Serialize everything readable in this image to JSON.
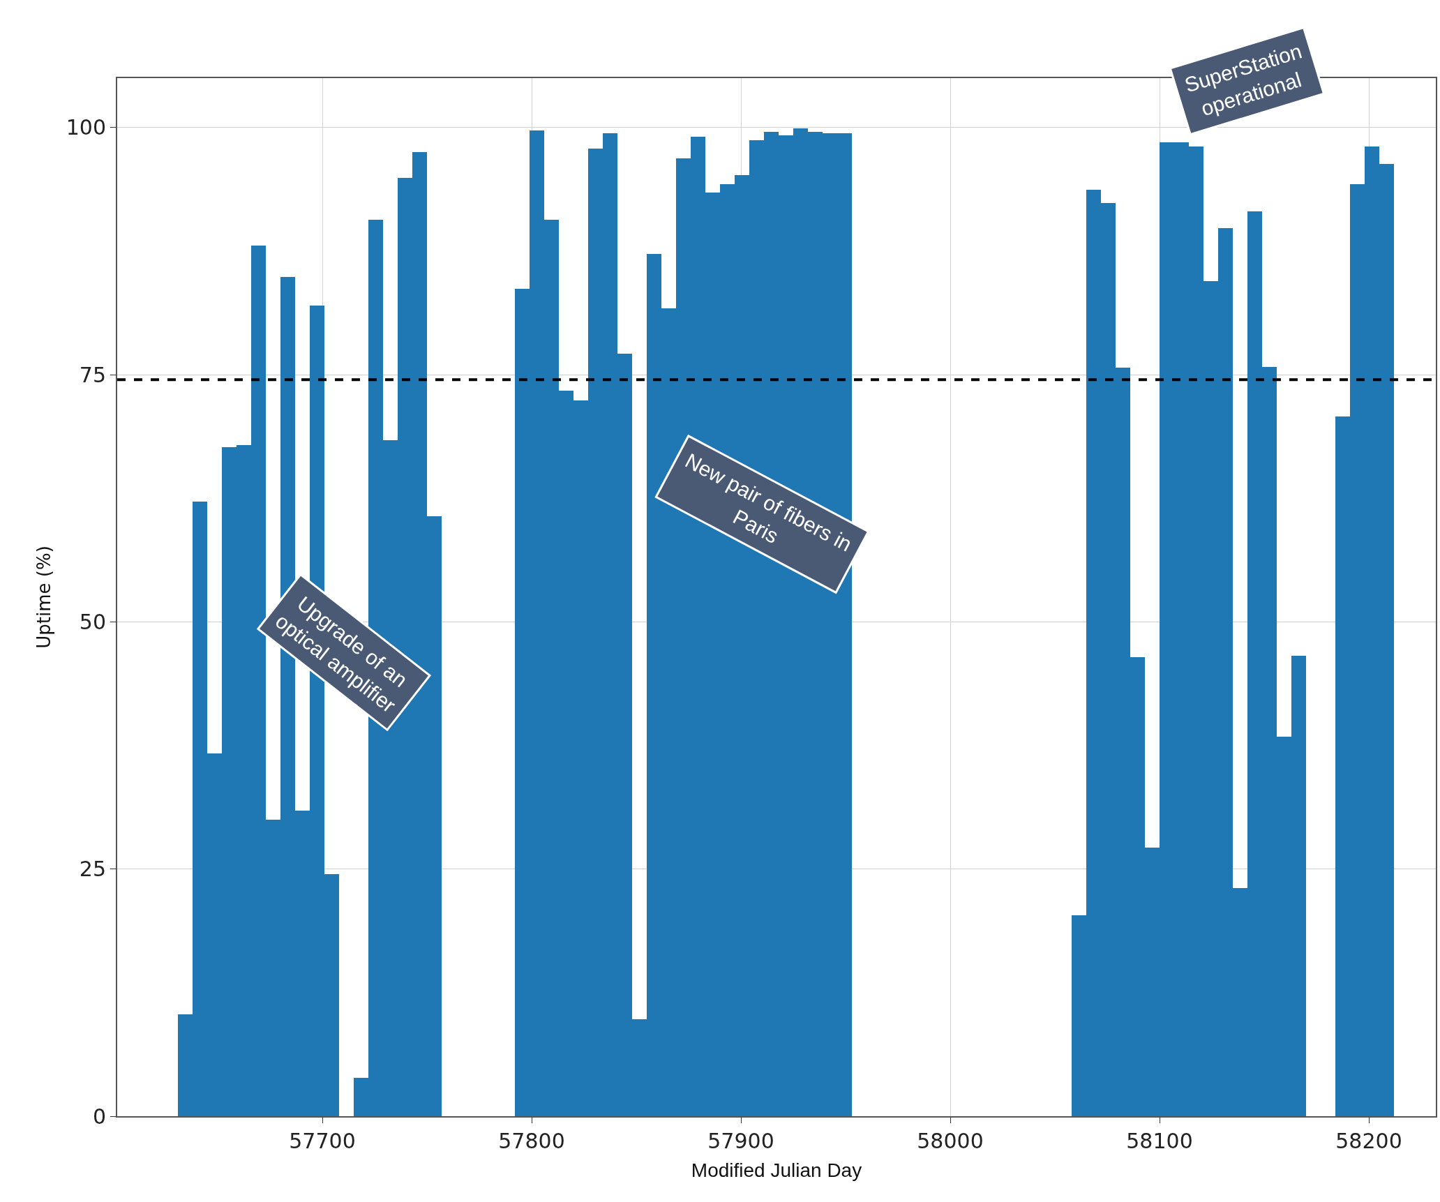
{
  "chart_data": {
    "type": "bar",
    "xlabel": "Modified Julian Day",
    "ylabel": "Uptime (%)",
    "x": [
      57634.5,
      57641.5,
      57648.5,
      57655.5,
      57662.5,
      57669.5,
      57676.5,
      57683.5,
      57690.5,
      57697.5,
      57704.5,
      57718.5,
      57725.5,
      57732.5,
      57739.5,
      57746.5,
      57753.5,
      57795.5,
      57802.5,
      57809.5,
      57816.5,
      57823.5,
      57830.5,
      57837.5,
      57844.5,
      57851.5,
      57858.5,
      57865.5,
      57872.5,
      57879.5,
      57886.5,
      57893.5,
      57900.5,
      57907.5,
      57914.5,
      57921.5,
      57928.5,
      57935.5,
      57942.5,
      57949.5,
      58061.5,
      58068.5,
      58075.5,
      58082.5,
      58089.5,
      58096.5,
      58103.5,
      58110.5,
      58117.5,
      58124.5,
      58131.5,
      58138.5,
      58145.5,
      58152.5,
      58159.5,
      58166.5,
      58187.5,
      58194.5,
      58201.5,
      58208.5
    ],
    "values": [
      10.3,
      62.2,
      36.7,
      67.7,
      67.9,
      88.1,
      30.0,
      84.9,
      30.9,
      82.0,
      24.5,
      3.9,
      90.7,
      68.4,
      94.9,
      97.5,
      60.7,
      83.7,
      99.7,
      90.7,
      73.4,
      72.4,
      97.9,
      99.4,
      77.1,
      9.8,
      87.2,
      81.7,
      96.9,
      99.1,
      93.4,
      94.3,
      95.2,
      98.7,
      99.6,
      99.2,
      99.9,
      99.6,
      99.4,
      99.4,
      20.3,
      93.7,
      92.4,
      75.7,
      46.4,
      27.2,
      98.5,
      98.5,
      98.1,
      84.5,
      89.8,
      23.1,
      91.5,
      75.8,
      38.4,
      46.6,
      70.8,
      94.3,
      98.1,
      96.3
    ],
    "color": "#1f77b4",
    "xlim": [
      57602,
      58232
    ],
    "xticks": [
      57700,
      57800,
      57900,
      58000,
      58100,
      58200
    ],
    "ylim": [
      0,
      105
    ],
    "yticks": [
      0,
      25,
      50,
      75,
      100
    ],
    "grid": true,
    "ref_lines": [
      {
        "axis": "y",
        "value": 74.5,
        "color": "#000000",
        "line_style": "dashed"
      }
    ],
    "annotations": [
      "Upgrade of an\noptical amplifier",
      "New pair of fibers in\nParis",
      "SuperStation\noperational"
    ]
  }
}
